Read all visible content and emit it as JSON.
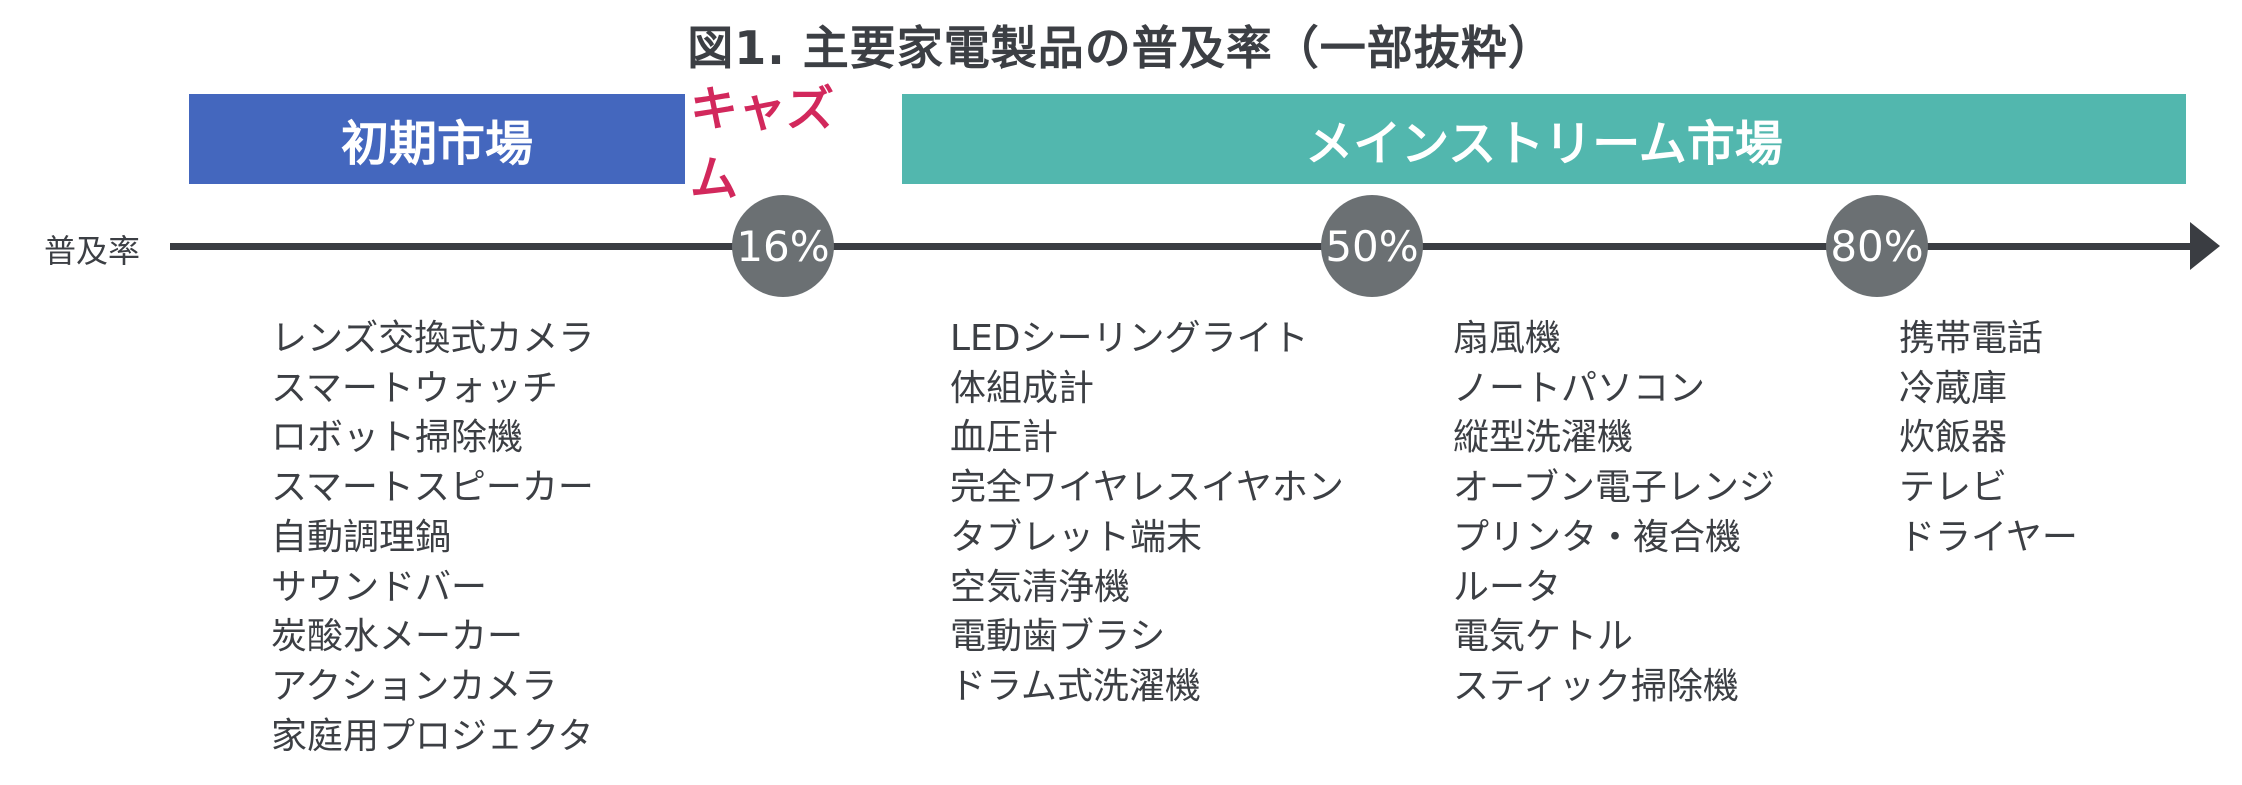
{
  "title": "図1. 主要家電製品の普及率（一部抜粋）",
  "bands": {
    "early": "初期市場",
    "chasm": "キャズム",
    "mainstream": "メインストリーム市場"
  },
  "axis": {
    "label": "普及率",
    "markers": [
      "16%",
      "50%",
      "80%"
    ]
  },
  "colors": {
    "early": "#4467be",
    "chasm": "#d2285c",
    "mainstream": "#52b7ae",
    "marker": "#6b7073",
    "axis": "#3a3d42"
  },
  "columns": [
    {
      "items": [
        "レンズ交換式カメラ",
        "スマートウォッチ",
        "ロボット掃除機",
        "スマートスピーカー",
        "自動調理鍋",
        "サウンドバー",
        "炭酸水メーカー",
        "アクションカメラ",
        "家庭用プロジェクタ"
      ]
    },
    {
      "items": [
        "LEDシーリングライト",
        "体組成計",
        "血圧計",
        "完全ワイヤレスイヤホン",
        "タブレット端末",
        "空気清浄機",
        "電動歯ブラシ",
        "ドラム式洗濯機"
      ]
    },
    {
      "items": [
        "扇風機",
        "ノートパソコン",
        "縦型洗濯機",
        "オーブン電子レンジ",
        "プリンタ・複合機",
        "ルータ",
        "電気ケトル",
        "スティック掃除機"
      ]
    },
    {
      "items": [
        "携帯電話",
        "冷蔵庫",
        "炊飯器",
        "テレビ",
        "ドライヤー"
      ]
    }
  ]
}
